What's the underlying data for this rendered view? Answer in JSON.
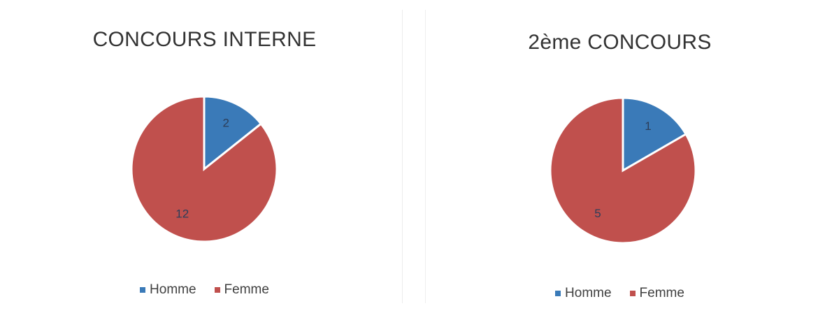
{
  "colors": {
    "homme": "#3a7ab8",
    "femme": "#c0504d"
  },
  "chart_data": [
    {
      "type": "pie",
      "title": "CONCOURS INTERNE",
      "categories": [
        "Homme",
        "Femme"
      ],
      "values": [
        2,
        12
      ],
      "legend": "bottom",
      "data_labels": [
        "2",
        "12"
      ]
    },
    {
      "type": "pie",
      "title": "2ème CONCOURS",
      "categories": [
        "Homme",
        "Femme"
      ],
      "values": [
        1,
        5
      ],
      "legend": "bottom",
      "data_labels": [
        "1",
        "5"
      ]
    }
  ]
}
